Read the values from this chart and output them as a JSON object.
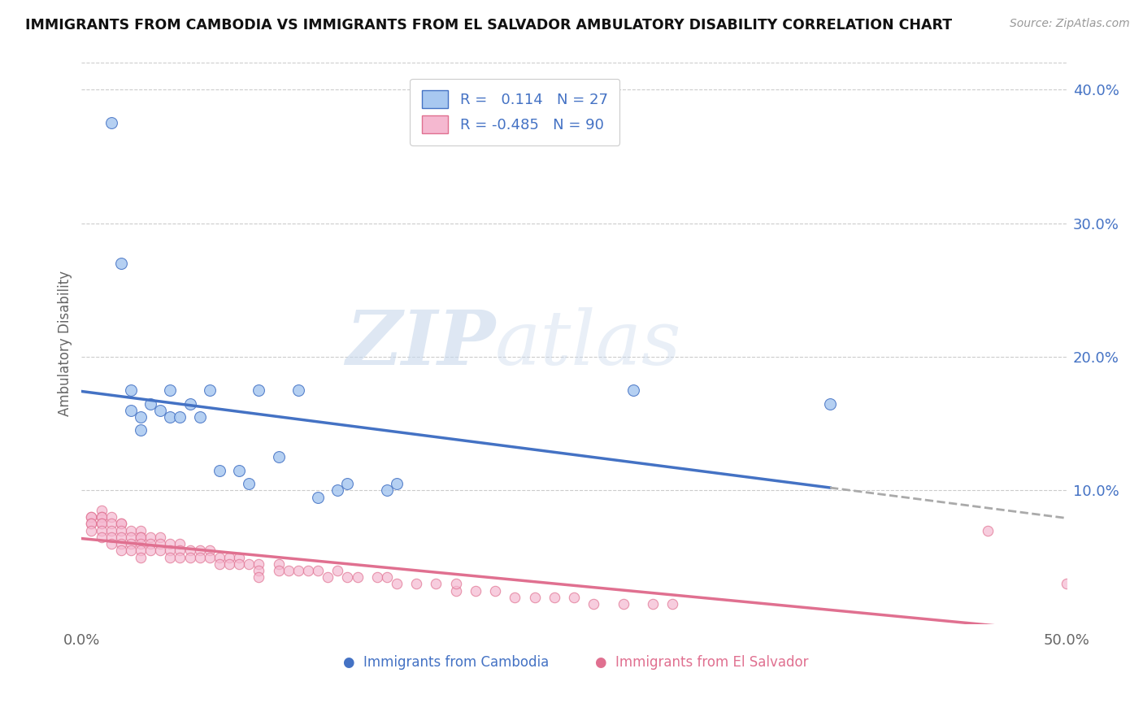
{
  "title": "IMMIGRANTS FROM CAMBODIA VS IMMIGRANTS FROM EL SALVADOR AMBULATORY DISABILITY CORRELATION CHART",
  "source": "Source: ZipAtlas.com",
  "ylabel": "Ambulatory Disability",
  "ytick_vals": [
    0.0,
    0.1,
    0.2,
    0.3,
    0.4
  ],
  "ytick_labels": [
    "",
    "10.0%",
    "20.0%",
    "30.0%",
    "40.0%"
  ],
  "xlim": [
    0.0,
    0.5
  ],
  "ylim": [
    0.0,
    0.42
  ],
  "color_cambodia": "#a8c8f0",
  "color_salvador": "#f5b8d0",
  "line_color_cambodia": "#4472c4",
  "line_color_salvador": "#e07090",
  "watermark_zip": "ZIP",
  "watermark_atlas": "atlas",
  "cambodia_x": [
    0.015,
    0.02,
    0.025,
    0.025,
    0.03,
    0.03,
    0.035,
    0.04,
    0.045,
    0.045,
    0.05,
    0.055,
    0.06,
    0.065,
    0.07,
    0.08,
    0.085,
    0.09,
    0.1,
    0.11,
    0.12,
    0.13,
    0.135,
    0.155,
    0.16,
    0.28,
    0.38
  ],
  "cambodia_y": [
    0.375,
    0.27,
    0.175,
    0.16,
    0.155,
    0.145,
    0.165,
    0.16,
    0.175,
    0.155,
    0.155,
    0.165,
    0.155,
    0.175,
    0.115,
    0.115,
    0.105,
    0.175,
    0.125,
    0.175,
    0.095,
    0.1,
    0.105,
    0.1,
    0.105,
    0.175,
    0.165
  ],
  "salvador_x": [
    0.005,
    0.005,
    0.005,
    0.005,
    0.005,
    0.01,
    0.01,
    0.01,
    0.01,
    0.01,
    0.01,
    0.01,
    0.015,
    0.015,
    0.015,
    0.015,
    0.015,
    0.02,
    0.02,
    0.02,
    0.02,
    0.02,
    0.02,
    0.025,
    0.025,
    0.025,
    0.025,
    0.03,
    0.03,
    0.03,
    0.03,
    0.03,
    0.03,
    0.035,
    0.035,
    0.035,
    0.04,
    0.04,
    0.04,
    0.045,
    0.045,
    0.045,
    0.05,
    0.05,
    0.05,
    0.055,
    0.055,
    0.06,
    0.06,
    0.065,
    0.065,
    0.07,
    0.07,
    0.075,
    0.075,
    0.08,
    0.08,
    0.085,
    0.09,
    0.09,
    0.09,
    0.1,
    0.1,
    0.105,
    0.11,
    0.115,
    0.12,
    0.125,
    0.13,
    0.135,
    0.14,
    0.15,
    0.155,
    0.16,
    0.17,
    0.18,
    0.19,
    0.19,
    0.2,
    0.21,
    0.22,
    0.23,
    0.24,
    0.25,
    0.26,
    0.275,
    0.29,
    0.3,
    0.46,
    0.5
  ],
  "salvador_y": [
    0.08,
    0.08,
    0.075,
    0.075,
    0.07,
    0.085,
    0.08,
    0.08,
    0.075,
    0.075,
    0.07,
    0.065,
    0.08,
    0.075,
    0.07,
    0.065,
    0.06,
    0.075,
    0.075,
    0.07,
    0.065,
    0.06,
    0.055,
    0.07,
    0.065,
    0.06,
    0.055,
    0.07,
    0.065,
    0.065,
    0.06,
    0.055,
    0.05,
    0.065,
    0.06,
    0.055,
    0.065,
    0.06,
    0.055,
    0.06,
    0.055,
    0.05,
    0.06,
    0.055,
    0.05,
    0.055,
    0.05,
    0.055,
    0.05,
    0.055,
    0.05,
    0.05,
    0.045,
    0.05,
    0.045,
    0.05,
    0.045,
    0.045,
    0.045,
    0.04,
    0.035,
    0.045,
    0.04,
    0.04,
    0.04,
    0.04,
    0.04,
    0.035,
    0.04,
    0.035,
    0.035,
    0.035,
    0.035,
    0.03,
    0.03,
    0.03,
    0.025,
    0.03,
    0.025,
    0.025,
    0.02,
    0.02,
    0.02,
    0.02,
    0.015,
    0.015,
    0.015,
    0.015,
    0.07,
    0.03
  ]
}
